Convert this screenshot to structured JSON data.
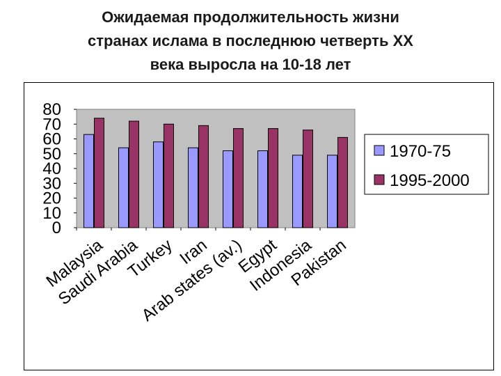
{
  "slide": {
    "title_lines": [
      "Ожидаемая продолжительность жизни",
      "странах ислама в последнюю четверть XX",
      "века выросла на 10-18 лет"
    ]
  },
  "chart_data": {
    "type": "bar",
    "categories": [
      "Malaysia",
      "Saudi Arabia",
      "Turkey",
      "Iran",
      "Arab states (av.)",
      "Egypt",
      "Indonesia",
      "Pakistan"
    ],
    "series": [
      {
        "name": "1970-75",
        "values": [
          63,
          54,
          58,
          54,
          52,
          52,
          49,
          49
        ],
        "color": "#9999ff"
      },
      {
        "name": "1995-2000",
        "values": [
          74,
          72,
          70,
          69,
          67,
          67,
          66,
          61
        ],
        "color": "#993366"
      }
    ],
    "y_ticks": [
      "0",
      "10",
      "20",
      "30",
      "40",
      "50",
      "60",
      "70",
      "80"
    ],
    "ylim": [
      0,
      80
    ],
    "grid": false,
    "legend_position": "right",
    "plot_background": "#c0c0c0"
  }
}
